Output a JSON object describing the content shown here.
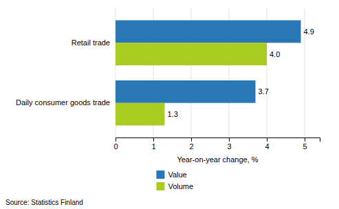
{
  "chart_data": {
    "type": "bar",
    "orientation": "horizontal",
    "categories": [
      "Retail trade",
      "Daily consumer goods trade"
    ],
    "series": [
      {
        "name": "Value",
        "color": "#2977B5",
        "values": [
          4.9,
          3.7
        ],
        "value_labels": [
          "4.9",
          "3.7"
        ]
      },
      {
        "name": "Volume",
        "color": "#AACC22",
        "values": [
          4.0,
          1.3
        ],
        "value_labels": [
          "4.0",
          "1.3"
        ]
      }
    ],
    "xlabel": "Year-on-year change, %",
    "xlim": [
      0,
      5.4
    ],
    "xticks": [
      0,
      1,
      2,
      3,
      4,
      5
    ],
    "grid": true,
    "data_labels": true,
    "legend": "bottom",
    "annotations": [
      "Source: Statistics Finland"
    ]
  }
}
